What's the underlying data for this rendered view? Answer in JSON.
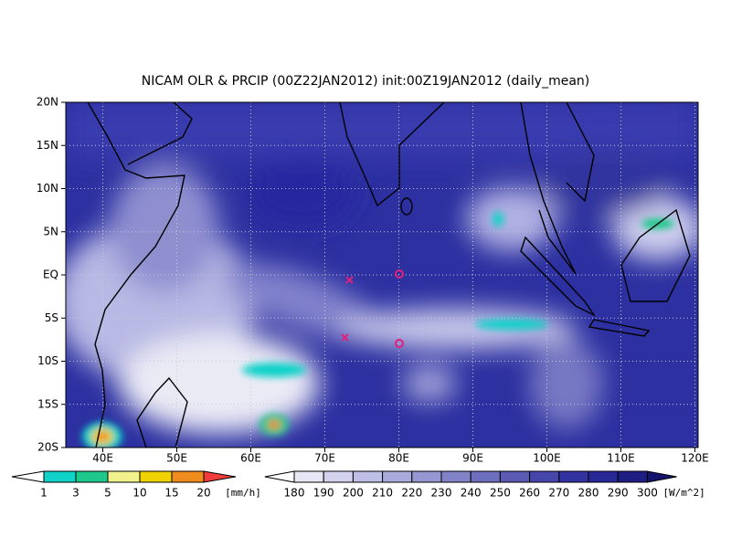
{
  "title": "NICAM OLR & PRCIP (00Z22JAN2012) init:00Z19JAN2012 (daily_mean)",
  "lat_labels": [
    "20N",
    "15N",
    "10N",
    "5N",
    "EQ",
    "5S",
    "10S",
    "15S",
    "20S"
  ],
  "lon_labels": [
    "40E",
    "50E",
    "60E",
    "70E",
    "80E",
    "90E",
    "100E",
    "110E",
    "120E"
  ],
  "precip_colorbar": {
    "labels": [
      "1",
      "3",
      "5",
      "10",
      "15",
      "20"
    ],
    "unit": "[mm/h]",
    "colors": [
      "#ffffff",
      "#10d2c8",
      "#1ec88c",
      "#f0f08c",
      "#f0d200",
      "#f08c1e",
      "#f03c3c"
    ]
  },
  "olr_colorbar": {
    "labels": [
      "180",
      "190",
      "200",
      "210",
      "220",
      "230",
      "240",
      "250",
      "260",
      "270",
      "280",
      "290",
      "300"
    ],
    "unit": "[W/m^2]",
    "colors": [
      "#ffffff",
      "#e6e6f5",
      "#d2d2ee",
      "#bebee6",
      "#aaaadc",
      "#9696d2",
      "#8282c8",
      "#6e6ebe",
      "#5a5ab4",
      "#4646aa",
      "#3232a0",
      "#282896",
      "#1e1e82",
      "#14146e"
    ]
  }
}
